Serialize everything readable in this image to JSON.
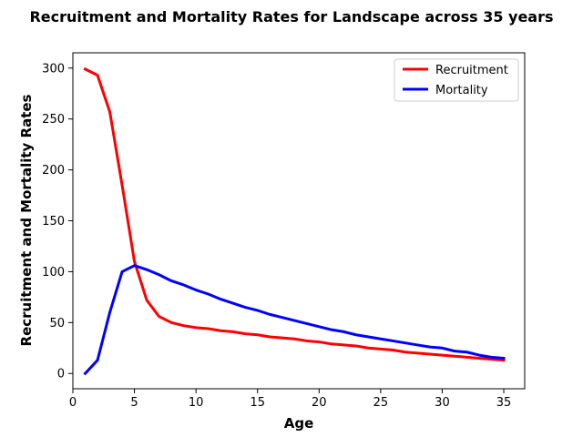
{
  "chart_data": {
    "type": "line",
    "title": "Recruitment and Mortality Rates for Landscape across 35 years",
    "xlabel": "Age",
    "ylabel": "Recruitment and Mortality Rates",
    "xlim": [
      0,
      36.7
    ],
    "ylim": [
      -15,
      315
    ],
    "xticks": [
      0,
      5,
      10,
      15,
      20,
      25,
      30,
      35
    ],
    "yticks": [
      0,
      50,
      100,
      150,
      200,
      250,
      300
    ],
    "grid": false,
    "legend_position": "top-right",
    "x": [
      1,
      2,
      3,
      4,
      5,
      6,
      7,
      8,
      9,
      10,
      11,
      12,
      13,
      14,
      15,
      16,
      17,
      18,
      19,
      20,
      21,
      22,
      23,
      24,
      25,
      26,
      27,
      28,
      29,
      30,
      31,
      32,
      33,
      34,
      35
    ],
    "series": [
      {
        "name": "Recruitment",
        "color": "#ff0000",
        "values": [
          299,
          293,
          257,
          185,
          110,
          72,
          56,
          50,
          47,
          45,
          44,
          42,
          41,
          39,
          38,
          36,
          35,
          34,
          32,
          31,
          29,
          28,
          27,
          25,
          24,
          23,
          21,
          20,
          19,
          18,
          17,
          16,
          15,
          14,
          13
        ]
      },
      {
        "name": "Mortality",
        "color": "#0000ff",
        "values": [
          0,
          13,
          60,
          100,
          106,
          102,
          97,
          91,
          87,
          82,
          78,
          73,
          69,
          65,
          62,
          58,
          55,
          52,
          49,
          46,
          43,
          41,
          38,
          36,
          34,
          32,
          30,
          28,
          26,
          25,
          22,
          21,
          18,
          16,
          15
        ]
      }
    ]
  }
}
